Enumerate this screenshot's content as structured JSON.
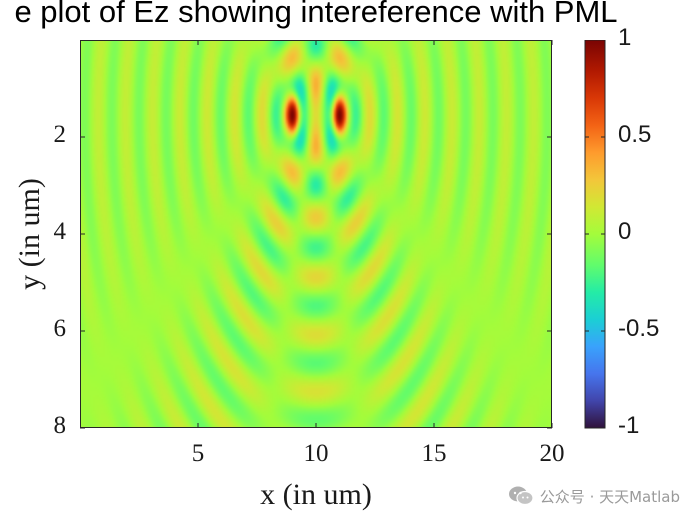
{
  "chart_data": {
    "type": "heatmap",
    "title": "e plot of Ez showing intereference with PML",
    "xlabel": "x (in um)",
    "ylabel": "y (in um)",
    "xlim": [
      0,
      20
    ],
    "ylim": [
      0,
      8
    ],
    "y_direction": "reverse",
    "x_ticks": [
      "5",
      "10",
      "15",
      "20"
    ],
    "x_tick_values": [
      5,
      10,
      15,
      20
    ],
    "y_ticks": [
      "2",
      "4",
      "6",
      "8"
    ],
    "y_tick_values": [
      2,
      4,
      6,
      8
    ],
    "colorbar": {
      "range": [
        -1,
        1
      ],
      "ticks": [
        "1",
        "0.5",
        "0",
        "-0.5",
        "-1"
      ],
      "tick_values": [
        1,
        0.5,
        0,
        -0.5,
        -1
      ],
      "colormap": "turbo"
    },
    "sources": [
      {
        "x": 9,
        "y": 1.55,
        "peak": 1.0
      },
      {
        "x": 11,
        "y": 1.55,
        "peak": 1.0
      }
    ],
    "field_description": "Ez field of two point sources producing concentric wavefronts and an interference pattern; values range about -0.3 to 1, background near 0"
  },
  "watermark": {
    "text": "公众号 · 天天Matlab",
    "icon": "wechat-icon"
  }
}
